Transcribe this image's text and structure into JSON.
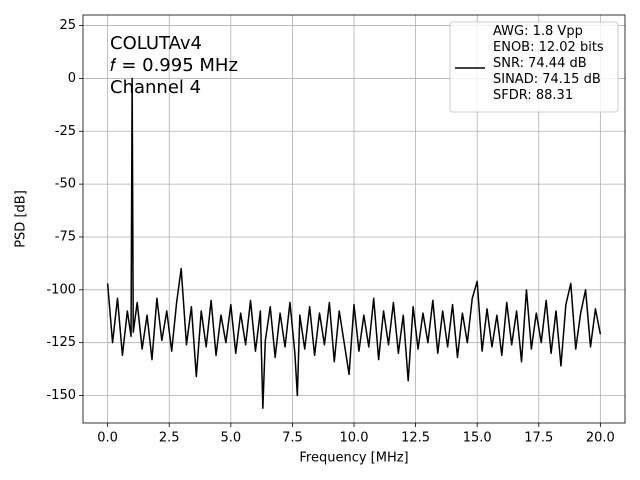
{
  "chart_data": {
    "type": "line",
    "annotation": [
      "COLUTAv4",
      "𝑓 = 0.995 MHz",
      "Channel 4"
    ],
    "xlabel": "Frequency [MHz]",
    "ylabel": "PSD [dB]",
    "xlim": [
      -1,
      21
    ],
    "ylim": [
      -163,
      30
    ],
    "xticks": [
      {
        "value": 0,
        "label": "0.0"
      },
      {
        "value": 2.5,
        "label": "2.5"
      },
      {
        "value": 5,
        "label": "5.0"
      },
      {
        "value": 7.5,
        "label": "7.5"
      },
      {
        "value": 10,
        "label": "10.0"
      },
      {
        "value": 12.5,
        "label": "12.5"
      },
      {
        "value": 15,
        "label": "15.0"
      },
      {
        "value": 17.5,
        "label": "17.5"
      },
      {
        "value": 20,
        "label": "20.0"
      }
    ],
    "yticks": [
      -150,
      -125,
      -100,
      -75,
      -50,
      -25,
      0,
      25
    ],
    "grid": true,
    "legend": "upper right",
    "x": [
      0,
      0.2,
      0.4,
      0.6,
      0.8,
      0.95,
      0.995,
      1.04,
      1.2,
      1.4,
      1.6,
      1.8,
      2.0,
      2.2,
      2.4,
      2.6,
      2.8,
      2.985,
      3.2,
      3.4,
      3.6,
      3.8,
      4.0,
      4.2,
      4.4,
      4.6,
      4.8,
      5.0,
      5.2,
      5.4,
      5.6,
      5.8,
      6.0,
      6.2,
      6.3,
      6.4,
      6.6,
      6.8,
      7.0,
      7.2,
      7.4,
      7.6,
      7.7,
      7.8,
      8.0,
      8.2,
      8.4,
      8.6,
      8.8,
      9.0,
      9.2,
      9.4,
      9.6,
      9.8,
      10.0,
      10.2,
      10.4,
      10.6,
      10.8,
      11.0,
      11.2,
      11.4,
      11.6,
      11.8,
      12.0,
      12.2,
      12.4,
      12.6,
      12.8,
      13.0,
      13.2,
      13.4,
      13.6,
      13.8,
      14.0,
      14.2,
      14.4,
      14.6,
      14.8,
      15.0,
      15.2,
      15.4,
      15.6,
      15.8,
      16.0,
      16.2,
      16.4,
      16.6,
      16.8,
      17.0,
      17.2,
      17.4,
      17.6,
      17.8,
      18.0,
      18.2,
      18.4,
      18.6,
      18.8,
      19.0,
      19.2,
      19.4,
      19.6,
      19.8,
      20.0
    ],
    "series": [
      {
        "name": "AWG: 1.8 Vpp\nENOB: 12.02 bits\nSNR: 74.44 dB\nSINAD: 74.15 dB\nSFDR: 88.31",
        "color": "#000000",
        "values": [
          -97,
          -125,
          -104,
          -131,
          -110,
          -122,
          0,
          -120,
          -106,
          -128,
          -112,
          -133,
          -104,
          -124,
          -110,
          -129,
          -106,
          -90,
          -126,
          -108,
          -141,
          -110,
          -127,
          -105,
          -131,
          -112,
          -125,
          -107,
          -130,
          -111,
          -126,
          -105,
          -129,
          -110,
          -156,
          -124,
          -108,
          -132,
          -111,
          -127,
          -106,
          -130,
          -150,
          -112,
          -128,
          -108,
          -131,
          -111,
          -126,
          -106,
          -134,
          -110,
          -125,
          -140,
          -107,
          -129,
          -112,
          -127,
          -104,
          -133,
          -110,
          -126,
          -106,
          -130,
          -112,
          -143,
          -108,
          -128,
          -111,
          -125,
          -105,
          -130,
          -110,
          -127,
          -107,
          -132,
          -111,
          -125,
          -104,
          -96,
          -129,
          -109,
          -127,
          -112,
          -131,
          -106,
          -126,
          -110,
          -134,
          -100,
          -128,
          -111,
          -125,
          -105,
          -130,
          -110,
          -136,
          -107,
          -97,
          -128,
          -111,
          -100,
          -127,
          -109,
          -121
        ]
      }
    ]
  }
}
